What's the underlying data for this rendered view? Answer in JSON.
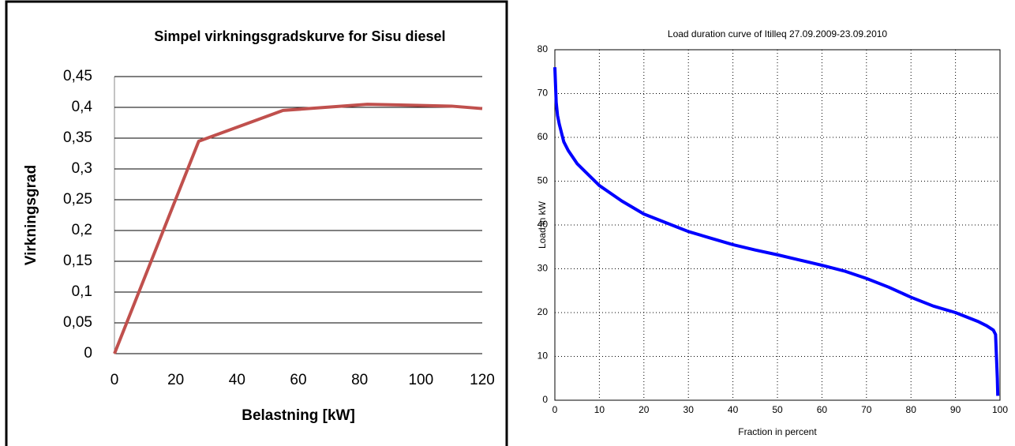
{
  "chart_data": [
    {
      "type": "line",
      "title": "Simpel virkningsgradskurve for Sisu diesel",
      "x_label": "Belastning [kW]",
      "y_label": "Virkningsgrad",
      "x": [
        0,
        27.5,
        55,
        82.5,
        110,
        120
      ],
      "series": [
        {
          "color": "#c0504d",
          "values": [
            0,
            0.345,
            0.395,
            0.405,
            0.402,
            0.398
          ]
        }
      ],
      "xlim": [
        0,
        120
      ],
      "xticks": [
        0,
        20,
        40,
        60,
        80,
        100,
        120
      ],
      "ylim": [
        0,
        0.45
      ],
      "yticks": [
        0,
        {
          "value": 0.05,
          "label": "0,05"
        },
        {
          "value": 0.1,
          "label": "0,1"
        },
        {
          "value": 0.15,
          "label": "0,15"
        },
        {
          "value": 0.2,
          "label": "0,2"
        },
        {
          "value": 0.25,
          "label": "0,25"
        },
        {
          "value": 0.3,
          "label": "0,3"
        },
        {
          "value": 0.35,
          "label": "0,35"
        },
        {
          "value": 0.4,
          "label": "0,4"
        },
        {
          "value": 0.45,
          "label": "0,45"
        }
      ],
      "grid": "horizontal-solid"
    },
    {
      "type": "line",
      "title": "Load duration curve of Itilleq 27.09.2009-23.09.2010",
      "x_label": "Fraction in percent",
      "y_label": "Load in kW",
      "x": [
        0,
        0.3,
        0.6,
        1,
        2,
        3,
        5,
        7,
        10,
        15,
        20,
        25,
        30,
        35,
        40,
        45,
        50,
        55,
        60,
        65,
        70,
        75,
        80,
        85,
        90,
        95,
        97,
        98.5,
        99,
        99.2,
        99.4,
        99.5
      ],
      "series": [
        {
          "color": "#0000ff",
          "values": [
            76,
            68,
            65,
            63,
            59,
            57,
            54,
            52,
            49,
            45.5,
            42.5,
            40.5,
            38.5,
            37,
            35.5,
            34.3,
            33.2,
            32,
            30.8,
            29.5,
            27.8,
            25.8,
            23.5,
            21.5,
            20,
            18,
            17,
            16,
            15,
            10,
            5,
            1
          ]
        }
      ],
      "xlim": [
        0,
        100
      ],
      "xticks": [
        0,
        10,
        20,
        30,
        40,
        50,
        60,
        70,
        80,
        90,
        100
      ],
      "ylim": [
        0,
        80
      ],
      "yticks": [
        0,
        10,
        20,
        30,
        40,
        50,
        60,
        70,
        80
      ],
      "grid": "dotted"
    }
  ]
}
